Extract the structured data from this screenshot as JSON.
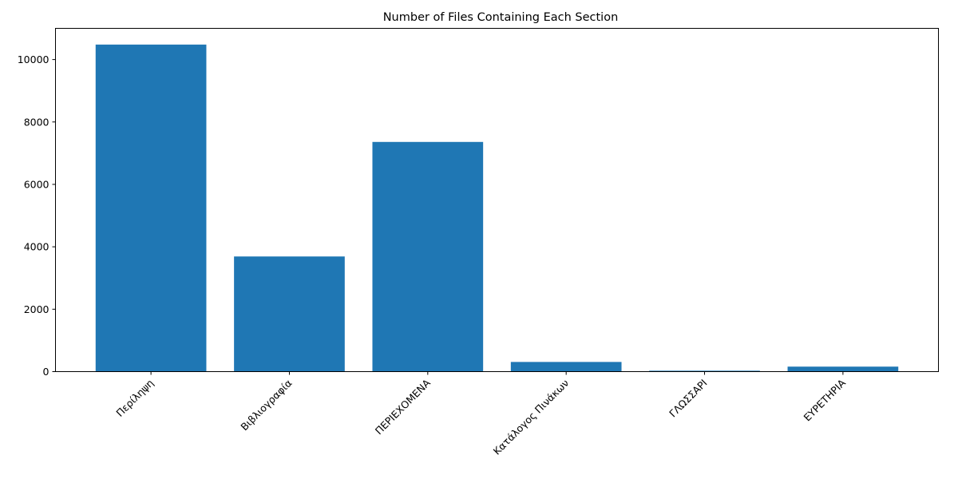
{
  "chart_data": {
    "type": "bar",
    "title": "Number of Files Containing Each Section",
    "xlabel": "",
    "ylabel": "",
    "categories": [
      "Περίληψη",
      "Βιβλιογραφία",
      "ΠΕΡΙΕΧΟΜΕΝΑ",
      "Κατάλογος Πινάκων",
      "ΓΛΩΣΣΑΡΙ",
      "ΕΥΡΕΤΗΡΙΑ"
    ],
    "values": [
      10480,
      3690,
      7360,
      310,
      30,
      160
    ],
    "ylim": [
      0,
      11000
    ],
    "yticks": [
      0,
      2000,
      4000,
      6000,
      8000,
      10000
    ],
    "bar_color": "#1f77b4",
    "grid": false,
    "legend": "none"
  }
}
